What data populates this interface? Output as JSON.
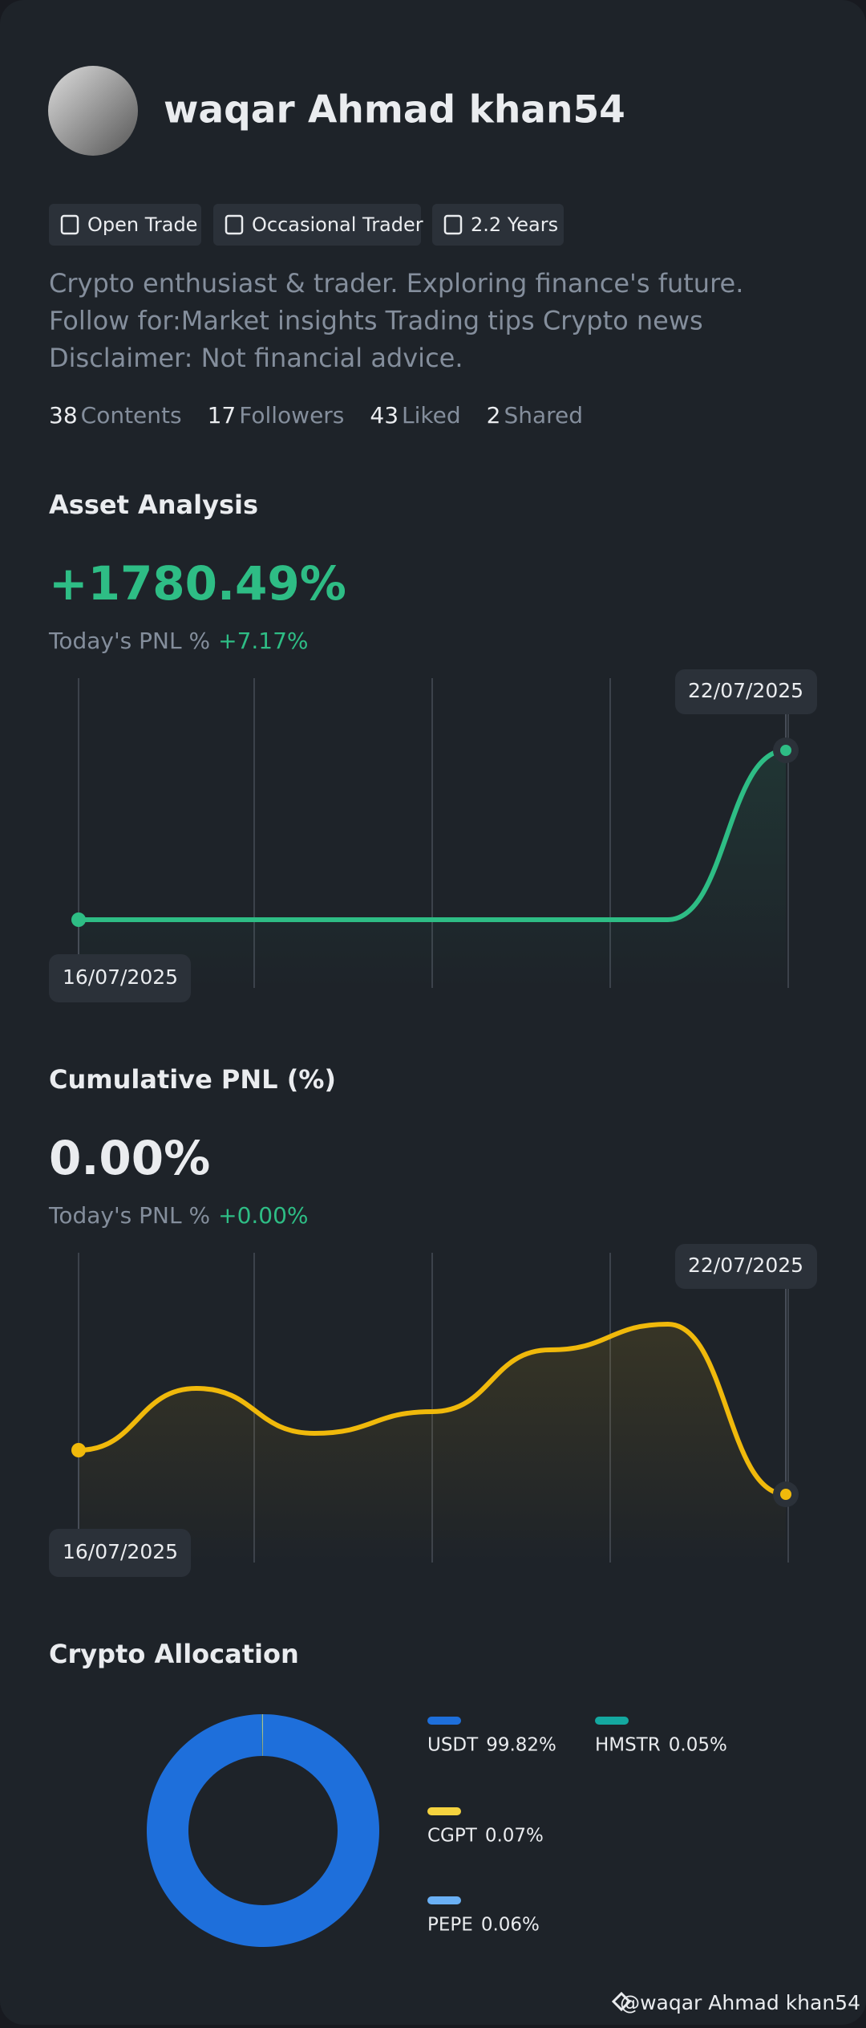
{
  "profile": {
    "name": "waqar Ahmad khan54",
    "tags": [
      "Open Trade",
      "Occasional Trader",
      "2.2 Years"
    ],
    "bio": "Crypto enthusiast & trader. Exploring finance's future. Follow for:Market insights Trading tips Crypto news Disclaimer: Not financial advice.",
    "stats": [
      {
        "count": 38,
        "label": "Contents"
      },
      {
        "count": 17,
        "label": "Followers"
      },
      {
        "count": 43,
        "label": "Liked"
      },
      {
        "count": 2,
        "label": "Shared"
      }
    ]
  },
  "chart_data": [
    {
      "type": "line",
      "title": "Asset Analysis",
      "headline": "+1780.49%",
      "subtitle": "Today's PNL %",
      "today": "+7.17%",
      "color": "#2ebd85",
      "x": [
        "16/07/2025",
        null,
        null,
        null,
        null,
        null,
        "22/07/2025"
      ],
      "values": [
        0,
        0,
        0,
        0,
        0,
        0,
        1780.49
      ]
    },
    {
      "type": "line",
      "title": "Cumulative PNL (%)",
      "headline": "0.00%",
      "subtitle": "Today's PNL %",
      "today": "+0.00%",
      "color": "#f0b90b",
      "x": [
        "16/07/2025",
        null,
        null,
        null,
        null,
        null,
        "22/07/2025"
      ],
      "values": [
        0.55,
        1.32,
        0.76,
        1.03,
        1.8,
        2.12,
        0
      ]
    },
    {
      "type": "pie",
      "title": "Crypto Allocation",
      "categories": [
        "USDT",
        "HMSTR",
        "CGPT",
        "PEPE"
      ],
      "values": [
        99.82,
        0.05,
        0.07,
        0.06
      ],
      "value_labels": [
        "99.82%",
        "0.05%",
        "0.07%",
        "0.06%"
      ],
      "colors": [
        "#1e6fdb",
        "#14a8a0",
        "#f5d33f",
        "#6ab0f5"
      ]
    }
  ],
  "footer": "@waqar Ahmad khan54"
}
